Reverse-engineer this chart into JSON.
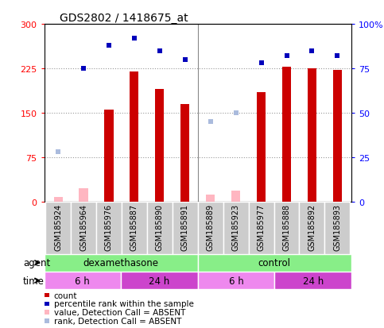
{
  "title": "GDS2802 / 1418675_at",
  "samples": [
    "GSM185924",
    "GSM185964",
    "GSM185976",
    "GSM185887",
    "GSM185890",
    "GSM185891",
    "GSM185889",
    "GSM185923",
    "GSM185977",
    "GSM185888",
    "GSM185892",
    "GSM185893"
  ],
  "bar_values": [
    null,
    null,
    155,
    220,
    190,
    165,
    null,
    null,
    185,
    228,
    225,
    222
  ],
  "bar_absent": [
    8,
    22,
    null,
    null,
    null,
    null,
    12,
    18,
    null,
    null,
    null,
    null
  ],
  "rank_present": [
    null,
    75,
    88,
    92,
    85,
    80,
    null,
    null,
    78,
    82,
    85,
    82
  ],
  "rank_absent": [
    28,
    null,
    null,
    null,
    null,
    null,
    45,
    50,
    null,
    null,
    null,
    null
  ],
  "ylim_left": [
    0,
    300
  ],
  "ylim_right": [
    0,
    100
  ],
  "yticks_left": [
    0,
    75,
    150,
    225,
    300
  ],
  "yticks_right": [
    0,
    25,
    50,
    75,
    100
  ],
  "ytick_labels_left": [
    "0",
    "75",
    "150",
    "225",
    "300"
  ],
  "ytick_labels_right": [
    "0",
    "25",
    "50",
    "75",
    "100%"
  ],
  "bar_color": "#CC0000",
  "bar_absent_color": "#FFB6C1",
  "rank_color": "#0000BB",
  "rank_absent_color": "#AABBDD",
  "agent_row": [
    {
      "label": "dexamethasone",
      "start": 0,
      "end": 6,
      "color": "#88EE88"
    },
    {
      "label": "control",
      "start": 6,
      "end": 12,
      "color": "#88EE88"
    }
  ],
  "time_row": [
    {
      "label": "6 h",
      "start": 0,
      "end": 3,
      "color": "#EE88EE"
    },
    {
      "label": "24 h",
      "start": 3,
      "end": 6,
      "color": "#CC44CC"
    },
    {
      "label": "6 h",
      "start": 6,
      "end": 9,
      "color": "#EE88EE"
    },
    {
      "label": "24 h",
      "start": 9,
      "end": 12,
      "color": "#CC44CC"
    }
  ],
  "legend_items": [
    {
      "color": "#CC0000",
      "label": "count"
    },
    {
      "color": "#0000BB",
      "label": "percentile rank within the sample"
    },
    {
      "color": "#FFB6C1",
      "label": "value, Detection Call = ABSENT"
    },
    {
      "color": "#AABBDD",
      "label": "rank, Detection Call = ABSENT"
    }
  ],
  "agent_label": "agent",
  "time_label": "time"
}
